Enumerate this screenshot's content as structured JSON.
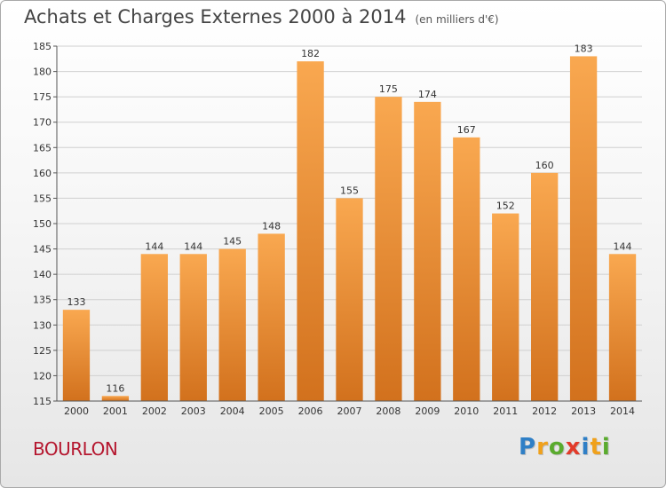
{
  "title": "Achats et Charges Externes 2000 à 2014",
  "title_unit": "(en milliers d'€)",
  "commune": "BOURLON",
  "logo": {
    "letters": [
      "P",
      "r",
      "o",
      "x",
      "i",
      "t",
      "i"
    ],
    "colors": [
      "#2f7fc6",
      "#f0a11b",
      "#5aab2e",
      "#e23b2a",
      "#2f7fc6",
      "#f0a11b",
      "#5aab2e"
    ]
  },
  "colors": {
    "bar_top": "#f9a850",
    "bar_bottom": "#d2711d",
    "commune": "#b5172f"
  },
  "chart_data": {
    "type": "bar",
    "categories": [
      "2000",
      "2001",
      "2002",
      "2003",
      "2004",
      "2005",
      "2006",
      "2007",
      "2008",
      "2009",
      "2010",
      "2011",
      "2012",
      "2013",
      "2014"
    ],
    "values": [
      133,
      116,
      144,
      144,
      145,
      148,
      182,
      155,
      175,
      174,
      167,
      152,
      160,
      183,
      144
    ],
    "ylim": [
      115,
      185
    ],
    "yticks": [
      115,
      120,
      125,
      130,
      135,
      140,
      145,
      150,
      155,
      160,
      165,
      170,
      175,
      180,
      185
    ],
    "grid": "horizontal",
    "legend": "none"
  }
}
